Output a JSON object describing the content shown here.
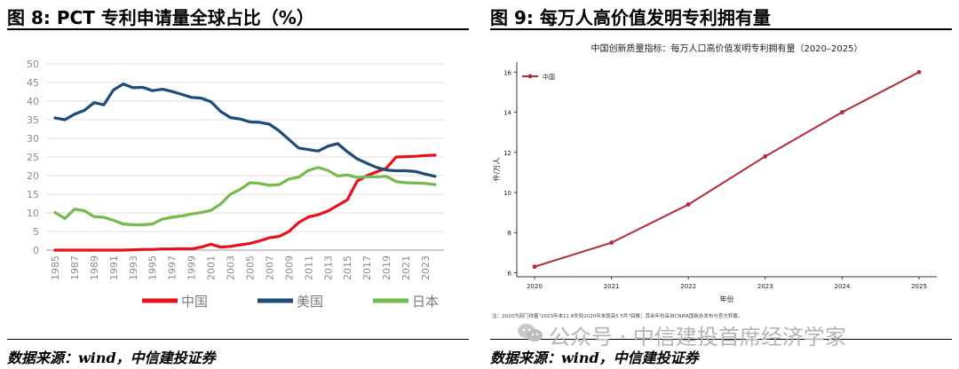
{
  "left": {
    "panel_title": "图 8: PCT 专利申请量全球占比（%）",
    "source": "数据来源：wind，中信建投证券"
  },
  "right": {
    "panel_title": "图 9:  每万人高价值发明专利拥有量",
    "source": "数据来源：wind，中信建投证券"
  },
  "watermark": "公众号 · 中信建投首席经济学家",
  "chart_data": [
    {
      "type": "line",
      "title": "",
      "x": [
        1985,
        1986,
        1987,
        1988,
        1989,
        1990,
        1991,
        1992,
        1993,
        1994,
        1995,
        1996,
        1997,
        1998,
        1999,
        2000,
        2001,
        2002,
        2003,
        2004,
        2005,
        2006,
        2007,
        2008,
        2009,
        2010,
        2011,
        2012,
        2013,
        2014,
        2015,
        2016,
        2017,
        2018,
        2019,
        2020,
        2021,
        2022,
        2023,
        2024
      ],
      "x_tick_labels": [
        "1985",
        "1987",
        "1989",
        "1991",
        "1993",
        "1995",
        "1997",
        "1999",
        "2001",
        "2003",
        "2005",
        "2007",
        "2009",
        "2011",
        "2013",
        "2015",
        "2017",
        "2019",
        "2021",
        "2023"
      ],
      "ylim": [
        0,
        50
      ],
      "y_ticks": [
        "0",
        "5",
        "10",
        "15",
        "20",
        "25",
        "30",
        "35",
        "40",
        "45",
        "50"
      ],
      "grid": "horizontal",
      "legend_position": "bottom",
      "series": [
        {
          "name": "中国",
          "color": "#e8101a",
          "values": [
            0,
            0,
            0,
            0,
            0,
            0,
            0,
            0,
            0.1,
            0.2,
            0.2,
            0.3,
            0.3,
            0.4,
            0.3,
            0.8,
            1.6,
            0.8,
            1.0,
            1.4,
            1.8,
            2.5,
            3.3,
            3.7,
            5.0,
            7.4,
            8.9,
            9.5,
            10.5,
            12.0,
            13.5,
            18.5,
            20.0,
            21.0,
            22.0,
            25.0,
            25.1,
            25.2,
            25.4,
            25.5
          ]
        },
        {
          "name": "美国",
          "color": "#1c4d7a",
          "values": [
            35.5,
            35.0,
            36.5,
            37.5,
            39.6,
            39.0,
            43.0,
            44.6,
            43.6,
            43.7,
            42.8,
            43.2,
            42.6,
            41.8,
            41.0,
            40.8,
            39.8,
            37.2,
            35.6,
            35.2,
            34.4,
            34.3,
            33.8,
            32.0,
            29.7,
            27.4,
            27.0,
            26.6,
            27.9,
            28.6,
            26.4,
            24.5,
            23.3,
            22.2,
            21.5,
            21.3,
            21.3,
            21.1,
            20.4,
            19.8
          ]
        },
        {
          "name": "日本",
          "color": "#73bb4b",
          "values": [
            10.1,
            8.5,
            11.0,
            10.6,
            9.0,
            8.8,
            8.0,
            7.0,
            6.8,
            6.8,
            7.0,
            8.3,
            8.8,
            9.2,
            9.7,
            10.1,
            10.7,
            12.4,
            15.0,
            16.3,
            18.1,
            17.9,
            17.4,
            17.6,
            19.1,
            19.6,
            21.4,
            22.2,
            21.4,
            19.9,
            20.2,
            19.5,
            19.7,
            19.7,
            19.8,
            18.4,
            18.1,
            18.0,
            17.9,
            17.6
          ]
        }
      ]
    },
    {
      "type": "line",
      "title": "中国创新质量指标：每万人口高价值发明专利拥有量（2020–2025）",
      "xlabel": "年份",
      "ylabel": "件/万人",
      "x": [
        "2020",
        "2021",
        "2022",
        "2023",
        "2024",
        "2025"
      ],
      "ylim": [
        5.8,
        16.5
      ],
      "y_ticks": [
        "6",
        "8",
        "10",
        "12",
        "14",
        "16"
      ],
      "grid": "none",
      "legend_position": "top-left",
      "note": "注：2020为部门线量\"2023年末11.8件较2020年末提高5.5件\"回推；其余年份采自CNIPA国新办发布与官方转载。",
      "series": [
        {
          "name": "中国",
          "color": "#b02a3a",
          "values": [
            6.3,
            7.5,
            9.4,
            11.8,
            14.0,
            16.0
          ]
        }
      ]
    }
  ]
}
